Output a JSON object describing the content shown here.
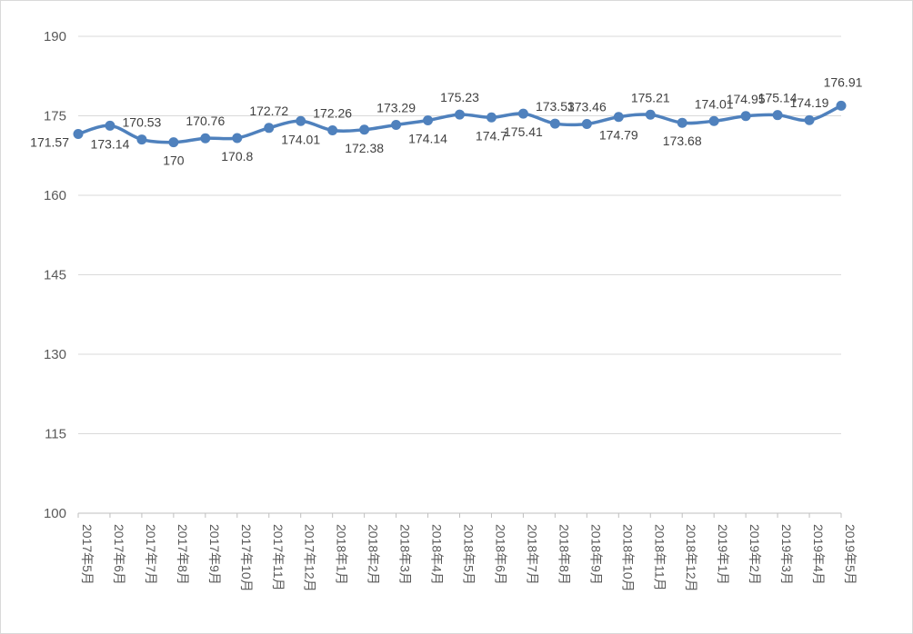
{
  "chart_data": {
    "type": "line",
    "title": "",
    "xlabel": "",
    "ylabel": "",
    "ylim": [
      100,
      190
    ],
    "yticks": [
      100,
      115,
      130,
      145,
      160,
      175,
      190
    ],
    "grid": true,
    "legend": "none",
    "line_color": "#4f81bd",
    "categories": [
      "2017年5月",
      "2017年6月",
      "2017年7月",
      "2017年8月",
      "2017年9月",
      "2017年10月",
      "2017年11月",
      "2017年12月",
      "2018年1月",
      "2018年2月",
      "2018年3月",
      "2018年4月",
      "2018年5月",
      "2018年6月",
      "2018年7月",
      "2018年8月",
      "2018年9月",
      "2018年10月",
      "2018年11月",
      "2018年12月",
      "2019年1月",
      "2019年2月",
      "2019年3月",
      "2019年4月",
      "2019年5月"
    ],
    "series": [
      {
        "values": [
          171.57,
          173.14,
          170.53,
          170,
          170.76,
          170.8,
          172.72,
          174.01,
          172.26,
          172.38,
          173.29,
          174.14,
          175.23,
          174.7,
          175.41,
          173.53,
          173.46,
          174.79,
          175.21,
          173.68,
          174.01,
          174.95,
          175.14,
          174.19,
          176.91
        ],
        "labels": [
          "171.57",
          "173.14",
          "170.53",
          "170",
          "170.76",
          "170.8",
          "172.72",
          "174.01",
          "172.26",
          "172.38",
          "173.29",
          "174.14",
          "175.23",
          "174.7",
          "175.41",
          "173.53",
          "173.46",
          "174.79",
          "175.21",
          "173.68",
          "174.01",
          "174.95",
          "175.14",
          "174.19",
          "176.91"
        ]
      }
    ]
  }
}
